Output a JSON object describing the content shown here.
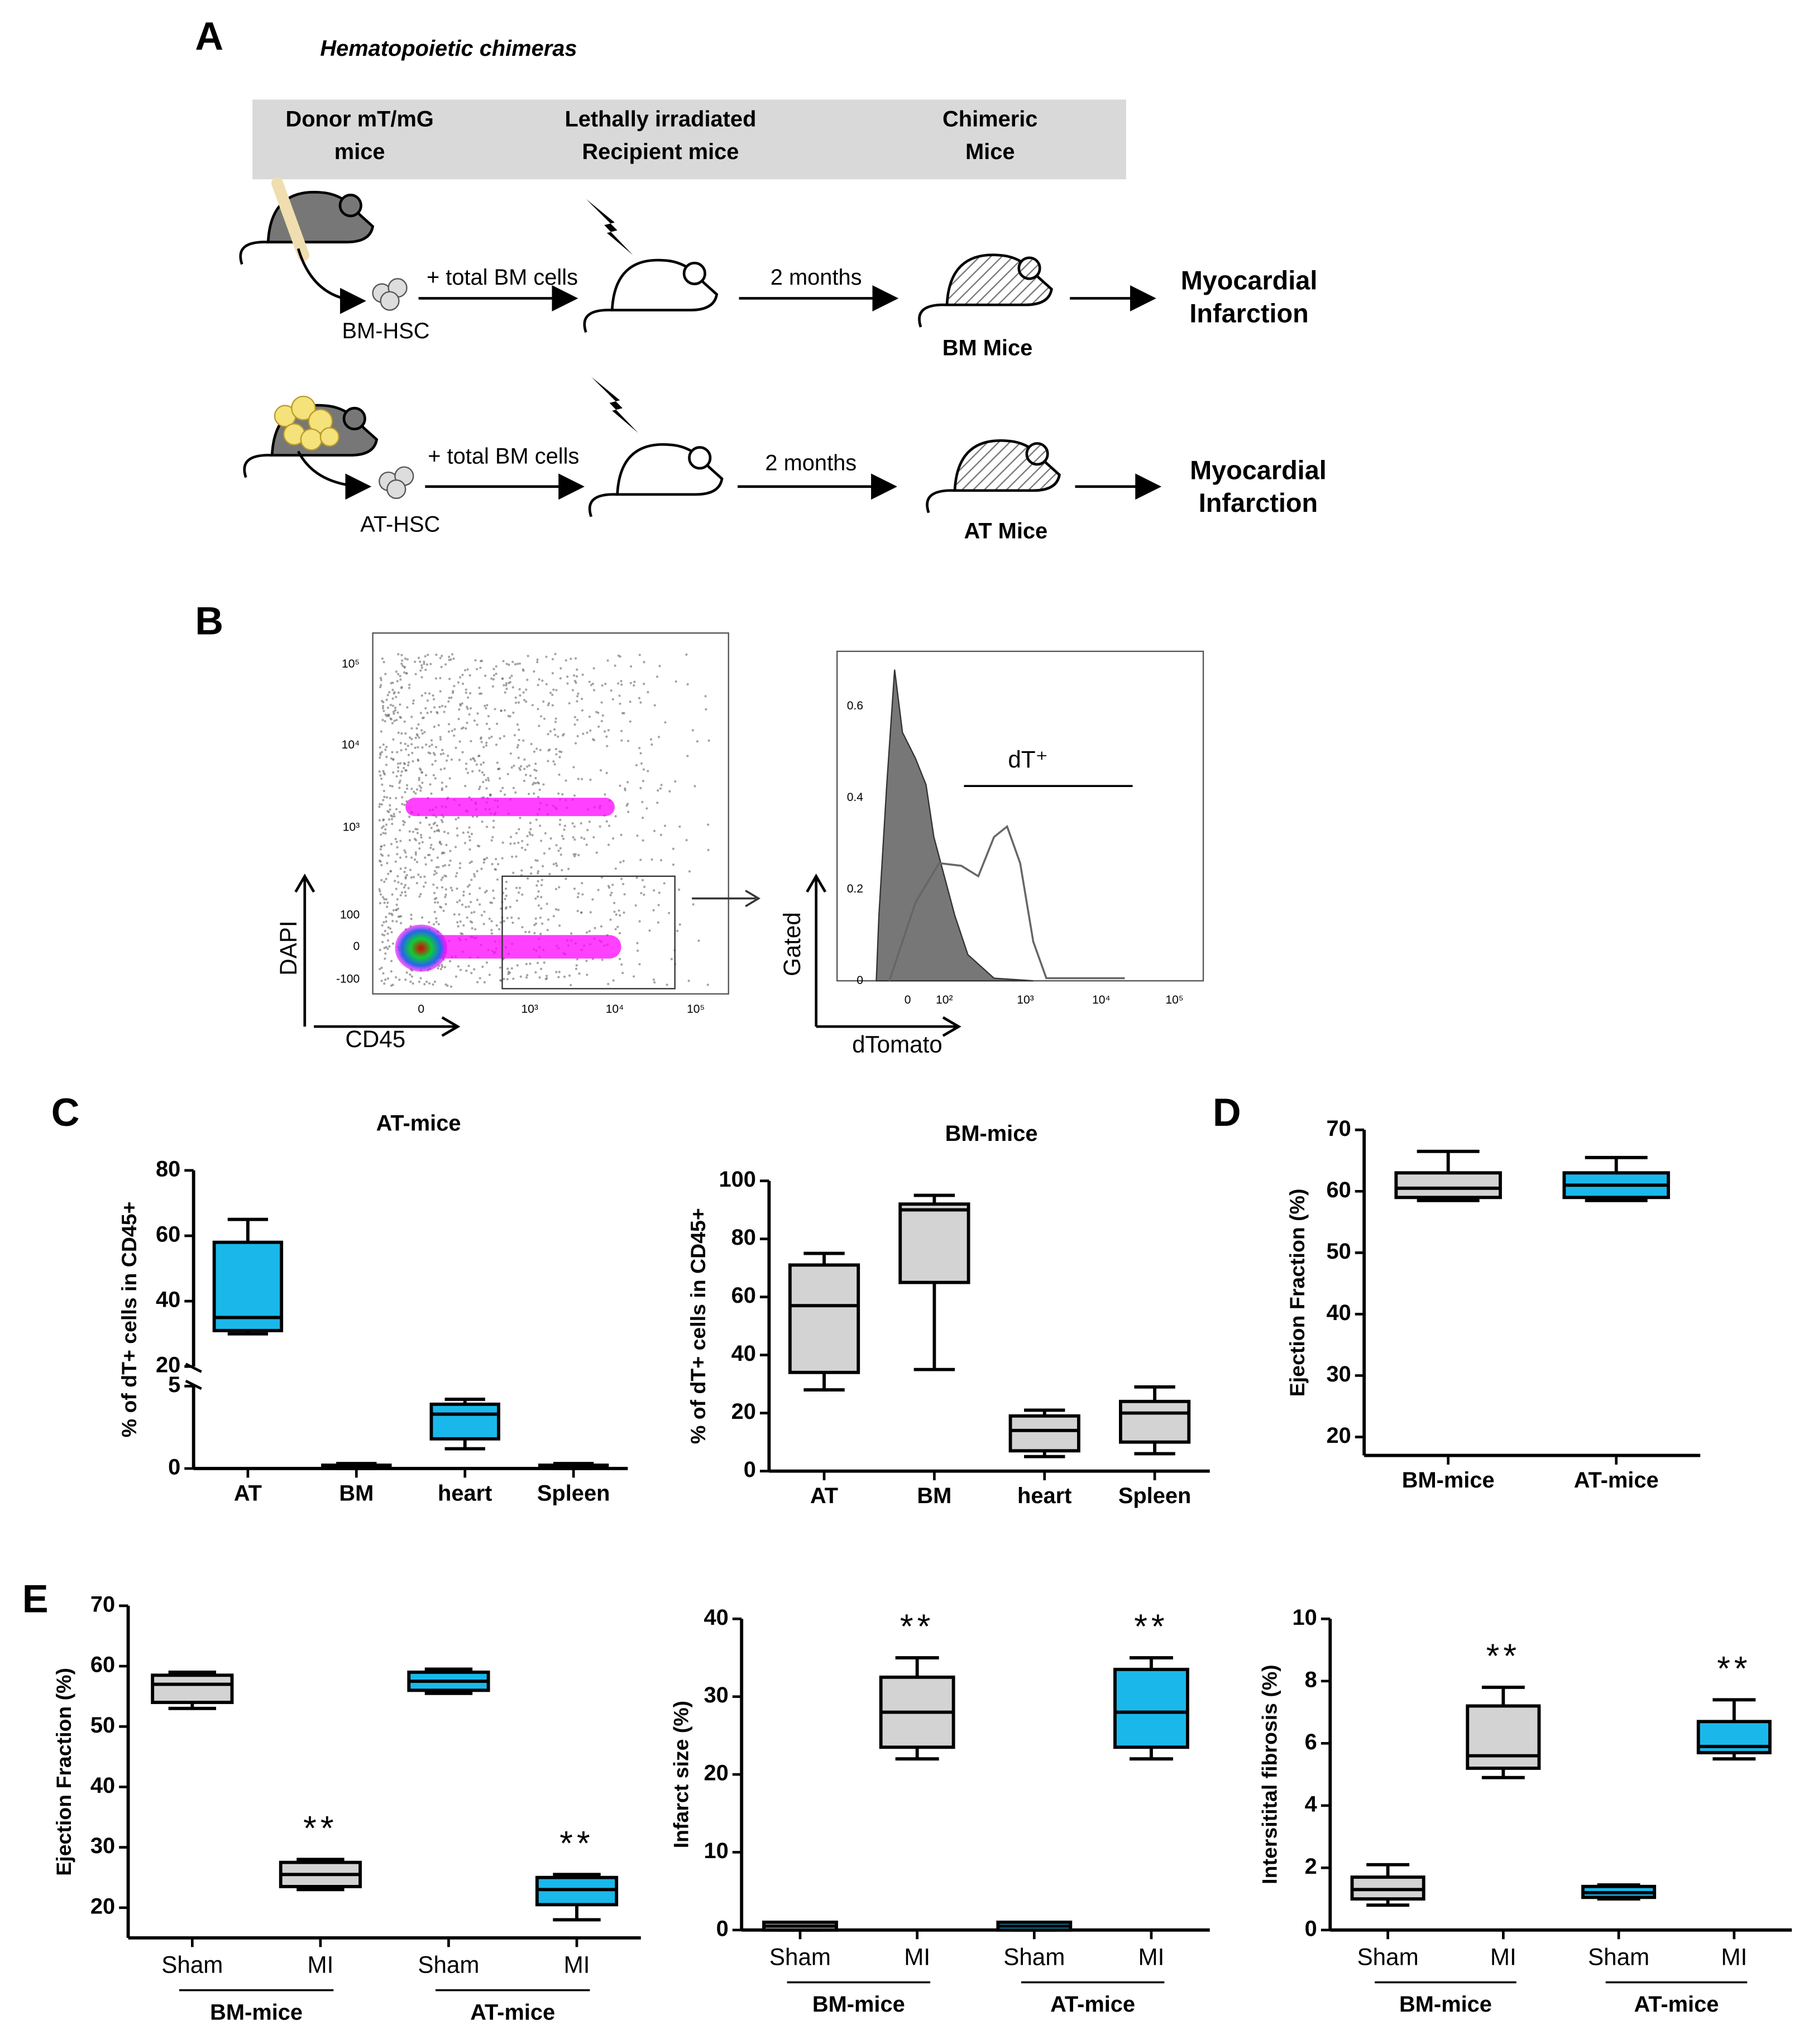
{
  "panel_a": {
    "label": "A",
    "title": "Hematopoietic chimeras",
    "header": [
      [
        "Donor mT/mG",
        "mice"
      ],
      [
        "Lethally irradiated",
        "Recipient mice"
      ],
      [
        "Chimeric",
        "Mice"
      ]
    ],
    "rows": [
      {
        "source": "BM-HSC",
        "transfer": "+ total BM cells",
        "time": "2 months",
        "mice": "BM Mice",
        "outcome": [
          "Myocardial",
          "Infarction"
        ]
      },
      {
        "source": "AT-HSC",
        "transfer": "+ total BM cells",
        "time": "2 months",
        "mice": "AT Mice",
        "outcome": [
          "Myocardial",
          "Infarction"
        ]
      }
    ]
  },
  "panel_b": {
    "label": "B",
    "scatter": {
      "x_label": "CD45",
      "y_label": "DAPI",
      "yticks": [
        "10⁵",
        "10⁴",
        "10³",
        100,
        0,
        -100
      ],
      "xticks": [
        0,
        "10³",
        "10⁴",
        "10⁵"
      ]
    },
    "histogram": {
      "x_label": "dTomato",
      "y_label": "Gated",
      "gate": "dT⁺",
      "yticks": [
        0.6,
        0.4,
        0.2,
        0
      ],
      "xticks": [
        0,
        "10²",
        "10³",
        "10⁴",
        "10⁵"
      ]
    }
  },
  "chart_data": [
    {
      "type": "box",
      "panel": "C",
      "title": "AT-mice",
      "y_label": "% of dT+ cells in CD45+",
      "categories": [
        "AT",
        "BM",
        "heart",
        "Spleen"
      ],
      "min": [
        30,
        0,
        1.2,
        0
      ],
      "q1": [
        31,
        0.1,
        1.8,
        0.1
      ],
      "median": [
        35,
        0.15,
        3.3,
        0.15
      ],
      "q3": [
        58,
        0.2,
        3.9,
        0.2
      ],
      "max": [
        65,
        0.3,
        4.2,
        0.3
      ],
      "colors": [
        "#1ab8ea",
        "#d3d3d3",
        "#1ab8ea",
        "#d3d3d3"
      ],
      "ylim": [
        0,
        80
      ],
      "ybreak": [
        5,
        20
      ],
      "yticks": [
        0,
        5,
        20,
        40,
        60,
        80
      ]
    },
    {
      "type": "box",
      "title": "BM-mice",
      "y_label": "% of dT+ cells in CD45+",
      "categories": [
        "AT",
        "BM",
        "heart",
        "Spleen"
      ],
      "min": [
        28,
        35,
        5,
        6
      ],
      "q1": [
        34,
        65,
        7,
        10
      ],
      "median": [
        57,
        90,
        14,
        20
      ],
      "q3": [
        71,
        92,
        19,
        24
      ],
      "max": [
        75,
        95,
        21,
        29
      ],
      "colors": [
        "#d3d3d3",
        "#d3d3d3",
        "#d3d3d3",
        "#d3d3d3"
      ],
      "ylim": [
        0,
        100
      ],
      "yticks": [
        0,
        20,
        40,
        60,
        80,
        100
      ]
    },
    {
      "type": "box",
      "panel": "D",
      "y_label": "Ejection Fraction (%)",
      "categories": [
        "BM-mice",
        "AT-mice"
      ],
      "min": [
        58.5,
        58.5
      ],
      "q1": [
        59,
        59
      ],
      "median": [
        60.5,
        61
      ],
      "q3": [
        63,
        63
      ],
      "max": [
        66.5,
        65.5
      ],
      "colors": [
        "#d3d3d3",
        "#1ab8ea"
      ],
      "ylim": [
        17,
        70
      ],
      "yticks": [
        20,
        30,
        40,
        50,
        60,
        70
      ]
    },
    {
      "type": "box",
      "panel": "E",
      "y_label": "Ejection Fraction (%)",
      "categories": [
        "Sham",
        "MI",
        "Sham",
        "MI"
      ],
      "groups": [
        "BM-mice",
        "AT-mice"
      ],
      "min": [
        53,
        23,
        55.5,
        18
      ],
      "q1": [
        54,
        23.5,
        56,
        20.5
      ],
      "median": [
        57,
        25.5,
        57.5,
        23
      ],
      "q3": [
        58.5,
        27.5,
        59,
        25
      ],
      "max": [
        59,
        28,
        59.5,
        25.5
      ],
      "annotations": [
        null,
        "**",
        null,
        "**"
      ],
      "colors": [
        "#d3d3d3",
        "#d3d3d3",
        "#1ab8ea",
        "#1ab8ea"
      ],
      "ylim": [
        15,
        70
      ],
      "yticks": [
        20,
        30,
        40,
        50,
        60,
        70
      ]
    },
    {
      "type": "box",
      "y_label": "Infarct size (%)",
      "categories": [
        "Sham",
        "MI",
        "Sham",
        "MI"
      ],
      "groups": [
        "BM-mice",
        "AT-mice"
      ],
      "min": [
        0,
        22,
        0,
        22
      ],
      "q1": [
        0,
        23.5,
        0,
        23.5
      ],
      "median": [
        0.5,
        28,
        0.5,
        28
      ],
      "q3": [
        1,
        32.5,
        1,
        33.5
      ],
      "max": [
        1,
        35,
        1,
        35
      ],
      "annotations": [
        null,
        "**",
        null,
        "**"
      ],
      "colors": [
        "#d3d3d3",
        "#d3d3d3",
        "#1ab8ea",
        "#1ab8ea"
      ],
      "ylim": [
        0,
        40
      ],
      "yticks": [
        0,
        10,
        20,
        30,
        40
      ]
    },
    {
      "type": "box",
      "y_label": "Intersitital fibrosis (%)",
      "categories": [
        "Sham",
        "MI",
        "Sham",
        "MI"
      ],
      "groups": [
        "BM-mice",
        "AT-mice"
      ],
      "min": [
        0.8,
        4.9,
        1,
        5.5
      ],
      "q1": [
        1,
        5.2,
        1.05,
        5.7
      ],
      "median": [
        1.3,
        5.6,
        1.2,
        5.9
      ],
      "q3": [
        1.7,
        7.2,
        1.4,
        6.7
      ],
      "max": [
        2.1,
        7.8,
        1.45,
        7.4
      ],
      "annotations": [
        null,
        "**",
        null,
        "**"
      ],
      "colors": [
        "#d3d3d3",
        "#d3d3d3",
        "#1ab8ea",
        "#1ab8ea"
      ],
      "ylim": [
        0,
        10
      ],
      "yticks": [
        0,
        2,
        4,
        6,
        8,
        10
      ]
    }
  ]
}
